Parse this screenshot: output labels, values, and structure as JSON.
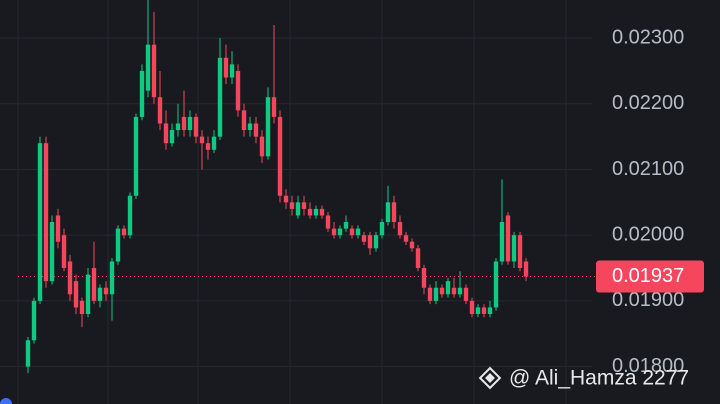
{
  "chart_data": {
    "type": "candlestick",
    "up_color": "#0ecb81",
    "down_color": "#f6465d",
    "grid": true,
    "ylim": [
      0.01743,
      0.02358
    ],
    "yticks": [
      {
        "value": 0.018,
        "label": "0.01800"
      },
      {
        "value": 0.019,
        "label": "0.01900"
      },
      {
        "value": 0.02,
        "label": "0.02000"
      },
      {
        "value": 0.021,
        "label": "0.02100"
      },
      {
        "value": 0.022,
        "label": "0.02200"
      },
      {
        "value": 0.023,
        "label": "0.02300"
      }
    ],
    "last_price": 0.01937,
    "watermark": "@ Ali_Hamza 2277",
    "candles": [
      [
        0.018,
        0.01845,
        0.0179,
        0.0184
      ],
      [
        0.0184,
        0.01905,
        0.01835,
        0.019
      ],
      [
        0.019,
        0.0215,
        0.01895,
        0.0214
      ],
      [
        0.0214,
        0.0215,
        0.0192,
        0.0193
      ],
      [
        0.0193,
        0.0203,
        0.01925,
        0.0202
      ],
      [
        0.0203,
        0.0204,
        0.0198,
        0.0199
      ],
      [
        0.02,
        0.0201,
        0.01945,
        0.0195
      ],
      [
        0.0196,
        0.0197,
        0.019,
        0.0191
      ],
      [
        0.0193,
        0.0194,
        0.0188,
        0.0189
      ],
      [
        0.019,
        0.01905,
        0.0186,
        0.0188
      ],
      [
        0.0188,
        0.0195,
        0.01875,
        0.0194
      ],
      [
        0.0195,
        0.0199,
        0.01895,
        0.019
      ],
      [
        0.019,
        0.01925,
        0.0189,
        0.0192
      ],
      [
        0.0192,
        0.0193,
        0.019,
        0.0191
      ],
      [
        0.0191,
        0.01965,
        0.0187,
        0.0196
      ],
      [
        0.0196,
        0.02015,
        0.01955,
        0.0201
      ],
      [
        0.0201,
        0.02015,
        0.01995,
        0.02
      ],
      [
        0.02,
        0.02065,
        0.01995,
        0.0206
      ],
      [
        0.0206,
        0.02185,
        0.02055,
        0.0218
      ],
      [
        0.0218,
        0.0226,
        0.02175,
        0.0225
      ],
      [
        0.0222,
        0.0236,
        0.0221,
        0.0229
      ],
      [
        0.0229,
        0.0234,
        0.022,
        0.0221
      ],
      [
        0.0221,
        0.0225,
        0.0216,
        0.0217
      ],
      [
        0.0217,
        0.0219,
        0.0213,
        0.0214
      ],
      [
        0.0214,
        0.0217,
        0.02135,
        0.0216
      ],
      [
        0.0216,
        0.022,
        0.0215,
        0.0217
      ],
      [
        0.0218,
        0.0222,
        0.0215,
        0.0216
      ],
      [
        0.0216,
        0.0219,
        0.0215,
        0.0218
      ],
      [
        0.0218,
        0.02185,
        0.0214,
        0.0215
      ],
      [
        0.0215,
        0.0216,
        0.021,
        0.0214
      ],
      [
        0.0214,
        0.0215,
        0.02115,
        0.0213
      ],
      [
        0.0213,
        0.0216,
        0.02125,
        0.0215
      ],
      [
        0.0215,
        0.023,
        0.02145,
        0.0227
      ],
      [
        0.0227,
        0.0229,
        0.0223,
        0.0224
      ],
      [
        0.0224,
        0.0228,
        0.0223,
        0.0226
      ],
      [
        0.0225,
        0.0226,
        0.0218,
        0.0219
      ],
      [
        0.0219,
        0.022,
        0.0215,
        0.0216
      ],
      [
        0.0216,
        0.0218,
        0.0215,
        0.0217
      ],
      [
        0.0217,
        0.0218,
        0.0214,
        0.0215
      ],
      [
        0.0215,
        0.0216,
        0.0211,
        0.0212
      ],
      [
        0.0212,
        0.02225,
        0.02115,
        0.0221
      ],
      [
        0.0221,
        0.0232,
        0.0217,
        0.0218
      ],
      [
        0.0218,
        0.0219,
        0.0205,
        0.0206
      ],
      [
        0.0206,
        0.0207,
        0.0204,
        0.0205
      ],
      [
        0.0205,
        0.0206,
        0.0203,
        0.0204
      ],
      [
        0.0203,
        0.0206,
        0.02025,
        0.0205
      ],
      [
        0.0205,
        0.0206,
        0.0203,
        0.0204
      ],
      [
        0.0204,
        0.0205,
        0.02025,
        0.0203
      ],
      [
        0.0203,
        0.02045,
        0.02025,
        0.0204
      ],
      [
        0.0204,
        0.02045,
        0.02025,
        0.0203
      ],
      [
        0.0203,
        0.02035,
        0.02005,
        0.0201
      ],
      [
        0.0201,
        0.0202,
        0.01995,
        0.02
      ],
      [
        0.02,
        0.02015,
        0.01995,
        0.0201
      ],
      [
        0.0201,
        0.0203,
        0.02005,
        0.0202
      ],
      [
        0.0201,
        0.02015,
        0.01995,
        0.02
      ],
      [
        0.02,
        0.02015,
        0.01995,
        0.0201
      ],
      [
        0.02,
        0.02005,
        0.01985,
        0.0199
      ],
      [
        0.02,
        0.02005,
        0.0197,
        0.0198
      ],
      [
        0.0198,
        0.02005,
        0.01975,
        0.02
      ],
      [
        0.02,
        0.02025,
        0.01995,
        0.0202
      ],
      [
        0.0202,
        0.02075,
        0.02015,
        0.0205
      ],
      [
        0.0205,
        0.0206,
        0.0201,
        0.0202
      ],
      [
        0.0202,
        0.0203,
        0.01995,
        0.02
      ],
      [
        0.02,
        0.02005,
        0.01985,
        0.0199
      ],
      [
        0.0199,
        0.01995,
        0.01975,
        0.0198
      ],
      [
        0.0198,
        0.01985,
        0.01945,
        0.0195
      ],
      [
        0.0195,
        0.01955,
        0.0191,
        0.0192
      ],
      [
        0.0192,
        0.01925,
        0.01895,
        0.019
      ],
      [
        0.019,
        0.0193,
        0.01895,
        0.0192
      ],
      [
        0.0192,
        0.01925,
        0.01905,
        0.0191
      ],
      [
        0.0191,
        0.01935,
        0.01905,
        0.0193
      ],
      [
        0.0192,
        0.01935,
        0.01905,
        0.0191
      ],
      [
        0.0191,
        0.01945,
        0.01905,
        0.0192
      ],
      [
        0.0192,
        0.01925,
        0.01895,
        0.019
      ],
      [
        0.019,
        0.01905,
        0.01875,
        0.0188
      ],
      [
        0.0188,
        0.01895,
        0.01875,
        0.0189
      ],
      [
        0.0189,
        0.01895,
        0.01875,
        0.0188
      ],
      [
        0.0188,
        0.019,
        0.01875,
        0.0189
      ],
      [
        0.0189,
        0.01965,
        0.01885,
        0.0196
      ],
      [
        0.0196,
        0.02085,
        0.01955,
        0.0202
      ],
      [
        0.0203,
        0.02035,
        0.01955,
        0.0196
      ],
      [
        0.0196,
        0.02005,
        0.0195,
        0.02
      ],
      [
        0.02,
        0.02005,
        0.01945,
        0.0195
      ],
      [
        0.0196,
        0.01965,
        0.0193,
        0.01937
      ]
    ]
  }
}
